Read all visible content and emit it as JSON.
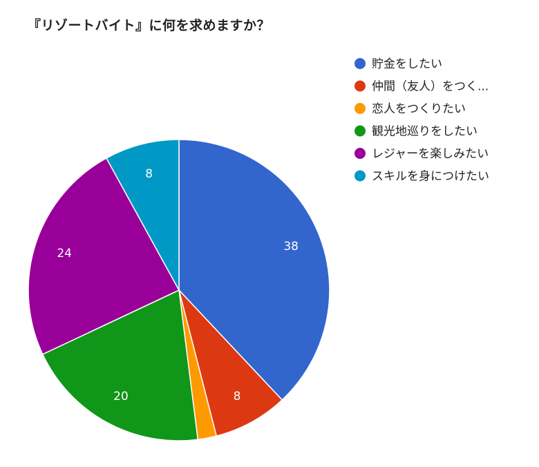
{
  "chart_data": {
    "type": "pie",
    "title": "『リゾートバイト』に何を求めますか？",
    "legend_position": "right",
    "categories": [
      "貯金をしたい",
      "仲間（友人）をつく...",
      "恋人をつくりたい",
      "観光地巡りをしたい",
      "レジャーを楽しみたい",
      "スキルを身につけたい"
    ],
    "values": [
      38,
      8,
      2,
      20,
      24,
      8
    ],
    "data_labels": [
      "38",
      "8",
      "",
      "20",
      "24",
      "8"
    ],
    "colors": [
      "#3366cc",
      "#dc3912",
      "#ff9900",
      "#109618",
      "#990099",
      "#0099c6"
    ]
  }
}
